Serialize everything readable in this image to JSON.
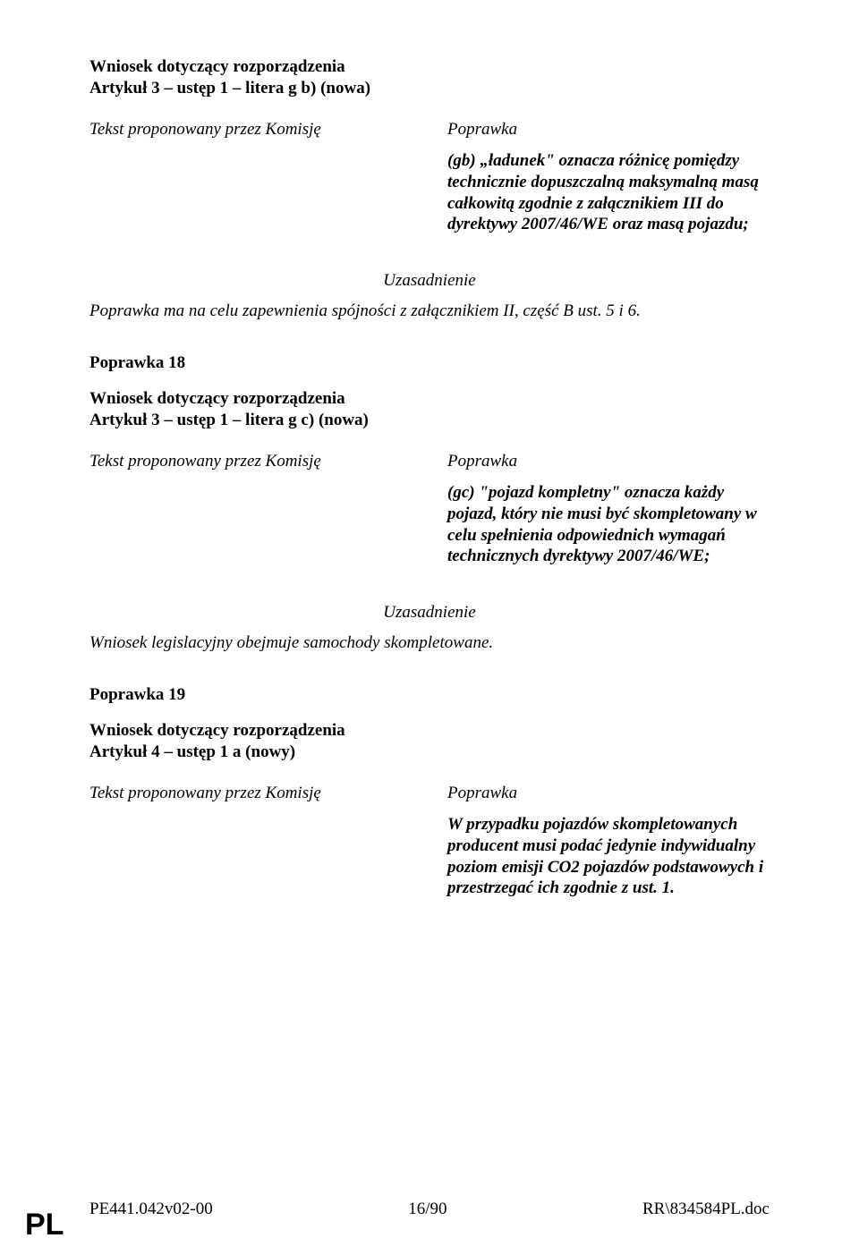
{
  "amend17": {
    "request": "Wniosek dotyczący rozporządzenia",
    "article": "Artykuł 3 – ustęp 1 – litera g b) (nowa)",
    "left_header": "Tekst proponowany przez Komisję",
    "right_header": "Poprawka",
    "body": "(gb) „ładunek\" oznacza różnicę pomiędzy technicznie dopuszczalną maksymalną masą całkowitą zgodnie z załącznikiem III do dyrektywy 2007/46/WE oraz masą pojazdu;",
    "justif_label": "Uzasadnienie",
    "justif_text": "Poprawka ma na celu zapewnienia spójności z załącznikiem II, część B ust. 5 i 6."
  },
  "amend18": {
    "label": "Poprawka 18",
    "request": "Wniosek dotyczący rozporządzenia",
    "article": "Artykuł 3 – ustęp 1 – litera g c) (nowa)",
    "left_header": "Tekst proponowany przez Komisję",
    "right_header": "Poprawka",
    "body": "(gc) \"pojazd kompletny\" oznacza każdy pojazd, który nie musi być skompletowany w celu spełnienia odpowiednich wymagań technicznych dyrektywy 2007/46/WE;",
    "justif_label": "Uzasadnienie",
    "justif_text": "Wniosek legislacyjny obejmuje samochody skompletowane."
  },
  "amend19": {
    "label": "Poprawka 19",
    "request": "Wniosek dotyczący rozporządzenia",
    "article": "Artykuł 4 – ustęp 1 a (nowy)",
    "left_header": "Tekst proponowany przez Komisję",
    "right_header": "Poprawka",
    "body": "W przypadku pojazdów skompletowanych producent musi podać jedynie indywidualny poziom emisji CO2 pojazdów podstawowych i przestrzegać ich zgodnie z ust. 1."
  },
  "footer": {
    "left": "PE441.042v02-00",
    "center": "16/90",
    "right": "RR\\834584PL.doc",
    "pl": "PL"
  }
}
